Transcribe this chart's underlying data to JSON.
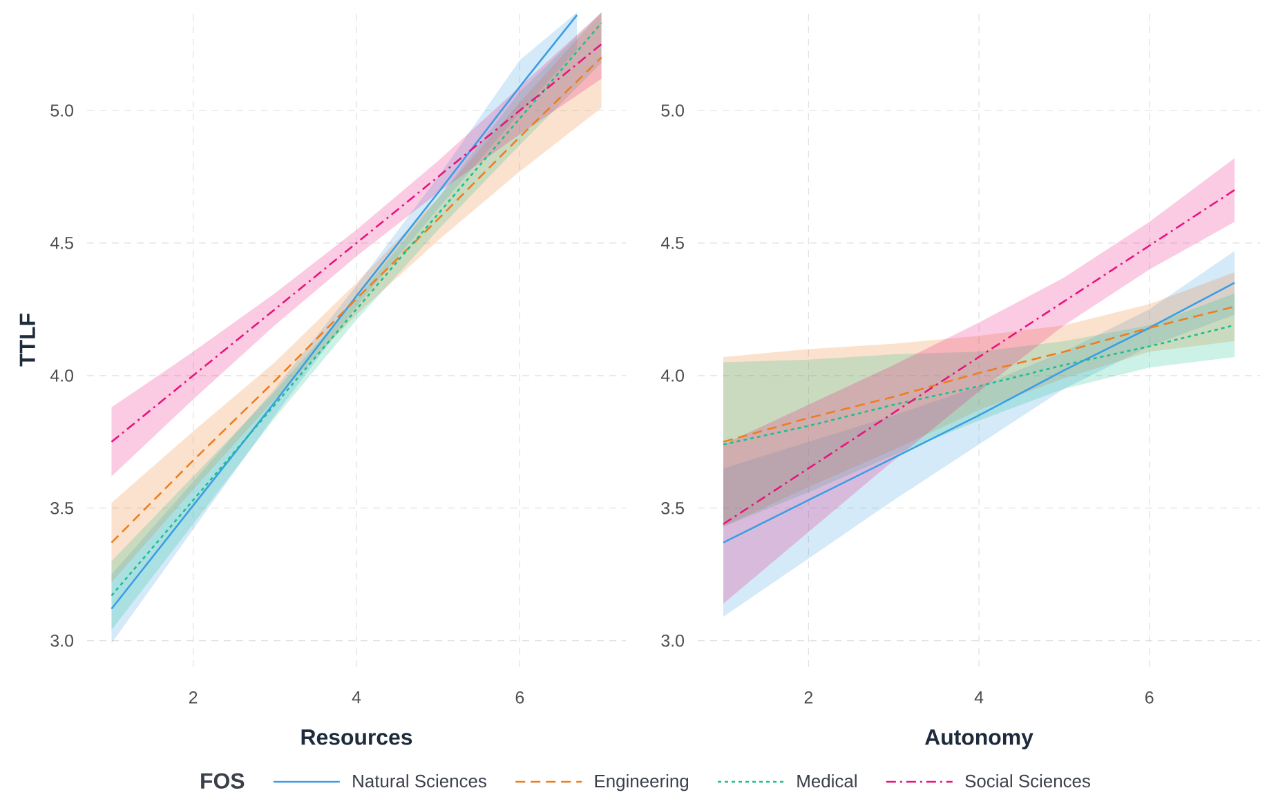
{
  "chart_data": [
    {
      "type": "line",
      "xlabel": "Resources",
      "ylabel": "TTLF",
      "legend_title": "FOS",
      "legend": "bottom",
      "grid": true,
      "xlim": [
        0.7,
        7.3
      ],
      "ylim": [
        2.9,
        5.37
      ],
      "xticks": [
        2,
        4,
        6
      ],
      "yticks": [
        {
          "value": 3,
          "label": "3.0"
        },
        {
          "value": 3.5,
          "label": "3.5"
        },
        {
          "value": 4,
          "label": "4.0"
        },
        {
          "value": 4.5,
          "label": "4.5"
        },
        {
          "value": 5,
          "label": "5.0"
        }
      ],
      "series": [
        {
          "name": "Natural Sciences",
          "color": "#3a9ee4",
          "line_style": "solid",
          "x": [
            1,
            2,
            3,
            4,
            5,
            6,
            6.7
          ],
          "values": [
            3.12,
            3.51,
            3.9,
            4.3,
            4.69,
            5.09,
            5.36
          ],
          "lower": [
            2.99,
            3.42,
            3.85,
            4.26,
            4.63,
            4.99,
            5.23
          ],
          "upper": [
            3.25,
            3.6,
            3.95,
            4.34,
            4.75,
            5.19,
            5.37
          ]
        },
        {
          "name": "Engineering",
          "color": "#ee7d1e",
          "line_style": "dashed",
          "x": [
            1,
            2,
            3,
            4,
            5,
            6,
            7
          ],
          "values": [
            3.37,
            3.68,
            3.98,
            4.29,
            4.59,
            4.9,
            5.2
          ],
          "lower": [
            3.22,
            3.57,
            3.91,
            4.23,
            4.51,
            4.77,
            5.01
          ],
          "upper": [
            3.52,
            3.79,
            4.05,
            4.35,
            4.67,
            5.03,
            5.37
          ]
        },
        {
          "name": "Medical",
          "color": "#19c08d",
          "line_style": "dotted",
          "x": [
            1,
            2,
            3,
            4,
            5,
            6,
            7
          ],
          "values": [
            3.17,
            3.53,
            3.89,
            4.25,
            4.61,
            4.97,
            5.33
          ],
          "lower": [
            3.04,
            3.44,
            3.84,
            4.21,
            4.55,
            4.87,
            5.18
          ],
          "upper": [
            3.3,
            3.62,
            3.94,
            4.29,
            4.67,
            5.07,
            5.37
          ]
        },
        {
          "name": "Social Sciences",
          "color": "#e8137d",
          "line_style": "dashdot",
          "x": [
            1,
            2,
            3,
            4,
            5,
            6,
            7
          ],
          "values": [
            3.75,
            4.0,
            4.25,
            4.5,
            4.75,
            5.0,
            5.25
          ],
          "lower": [
            3.62,
            3.91,
            4.19,
            4.45,
            4.69,
            4.91,
            5.12
          ],
          "upper": [
            3.88,
            4.09,
            4.31,
            4.55,
            4.81,
            5.09,
            5.37
          ]
        }
      ]
    },
    {
      "type": "line",
      "xlabel": "Autonomy",
      "grid": true,
      "xlim": [
        0.7,
        7.3
      ],
      "ylim": [
        2.9,
        5.37
      ],
      "xticks": [
        2,
        4,
        6
      ],
      "yticks": [
        {
          "value": 3,
          "label": "3.0"
        },
        {
          "value": 3.5,
          "label": "3.5"
        },
        {
          "value": 4,
          "label": "4.0"
        },
        {
          "value": 4.5,
          "label": "4.5"
        },
        {
          "value": 5,
          "label": "5.0"
        }
      ],
      "series": [
        {
          "color": "#3a9ee4",
          "line_style": "solid",
          "x": [
            1,
            2,
            3,
            4,
            5,
            6,
            7
          ],
          "values": [
            3.37,
            3.53,
            3.69,
            3.85,
            4.02,
            4.18,
            4.35
          ],
          "lower": [
            3.09,
            3.31,
            3.53,
            3.74,
            3.95,
            4.11,
            4.23
          ],
          "upper": [
            3.65,
            3.75,
            3.85,
            3.96,
            4.09,
            4.25,
            4.47
          ]
        },
        {
          "color": "#ee7d1e",
          "line_style": "dashed",
          "x": [
            1,
            2,
            3,
            4,
            5,
            6,
            7
          ],
          "values": [
            3.75,
            3.84,
            3.92,
            4.01,
            4.09,
            4.18,
            4.26
          ],
          "lower": [
            3.43,
            3.58,
            3.72,
            3.87,
            3.99,
            4.09,
            4.13
          ],
          "upper": [
            4.07,
            4.1,
            4.12,
            4.15,
            4.19,
            4.27,
            4.39
          ]
        },
        {
          "color": "#19c08d",
          "line_style": "dotted",
          "x": [
            1,
            2,
            3,
            4,
            5,
            6,
            7
          ],
          "values": [
            3.74,
            3.81,
            3.89,
            3.96,
            4.04,
            4.11,
            4.19
          ],
          "lower": [
            3.43,
            3.56,
            3.7,
            3.83,
            3.95,
            4.03,
            4.07
          ],
          "upper": [
            4.05,
            4.06,
            4.08,
            4.09,
            4.13,
            4.19,
            4.31
          ]
        },
        {
          "color": "#e8137d",
          "line_style": "dashdot",
          "x": [
            1,
            2,
            3,
            4,
            5,
            6,
            7
          ],
          "values": [
            3.44,
            3.65,
            3.86,
            4.07,
            4.28,
            4.49,
            4.7
          ],
          "lower": [
            3.14,
            3.41,
            3.68,
            3.94,
            4.19,
            4.4,
            4.58
          ],
          "upper": [
            3.74,
            3.89,
            4.04,
            4.2,
            4.37,
            4.58,
            4.82
          ]
        }
      ]
    }
  ]
}
